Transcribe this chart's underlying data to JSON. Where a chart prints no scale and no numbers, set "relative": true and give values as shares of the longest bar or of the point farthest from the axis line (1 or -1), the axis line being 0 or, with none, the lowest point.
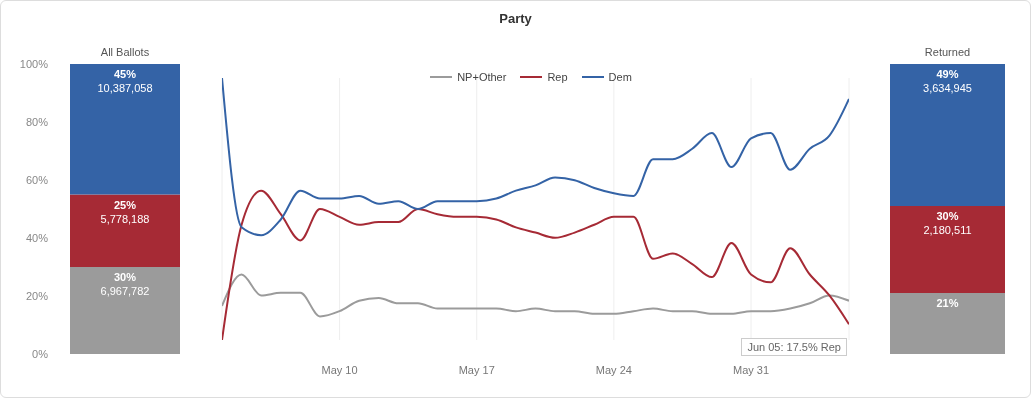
{
  "chart_data": [
    {
      "type": "bar",
      "stacked": true,
      "categories": [
        "All Ballots"
      ],
      "ylim": [
        0,
        100
      ],
      "yticks": [
        {
          "value": 0,
          "label": "0%"
        },
        {
          "value": 20,
          "label": "20%"
        },
        {
          "value": 40,
          "label": "40%"
        },
        {
          "value": 60,
          "label": "60%"
        },
        {
          "value": 80,
          "label": "80%"
        },
        {
          "value": 100,
          "label": "100%"
        }
      ],
      "grid": false,
      "series": [
        {
          "color": "#9b9b9b",
          "values": [
            30
          ],
          "value_labels": [
            "30%\n6,967,782"
          ]
        },
        {
          "color": "#a62a35",
          "values": [
            25
          ],
          "value_labels": [
            "25%\n5,778,188"
          ]
        },
        {
          "color": "#3463a6",
          "values": [
            45
          ],
          "value_labels": [
            "45%\n10,387,058"
          ]
        }
      ]
    },
    {
      "type": "line",
      "title": "Party",
      "relative": true,
      "legend": "top",
      "grid": "x",
      "marker": "none",
      "line_style": "solid",
      "x": [
        "--05-04",
        "--05-05",
        "--05-06",
        "--05-07",
        "--05-08",
        "--05-09",
        "--05-10",
        "--05-11",
        "--05-12",
        "--05-13",
        "--05-14",
        "--05-15",
        "--05-16",
        "--05-17",
        "--05-18",
        "--05-19",
        "--05-20",
        "--05-21",
        "--05-22",
        "--05-23",
        "--05-24",
        "--05-25",
        "--05-26",
        "--05-27",
        "--05-28",
        "--05-29",
        "--05-30",
        "--05-31",
        "--06-01",
        "--06-02",
        "--06-03",
        "--06-04",
        "--06-05"
      ],
      "xlim": [
        "--05-04",
        "--06-05"
      ],
      "xticks": [
        {
          "value": "--05-10",
          "label": "May 10"
        },
        {
          "value": "--05-17",
          "label": "May 17"
        },
        {
          "value": "--05-24",
          "label": "May 24"
        },
        {
          "value": "--05-31",
          "label": "May 31"
        }
      ],
      "annotations": [
        "Jun 05: 17.5% Rep"
      ],
      "series": [
        {
          "name": "NP+Other",
          "color": "#9b9b9b",
          "values": [
            0.13,
            0.25,
            0.17,
            0.18,
            0.18,
            0.09,
            0.11,
            0.15,
            0.16,
            0.14,
            0.14,
            0.12,
            0.12,
            0.12,
            0.12,
            0.11,
            0.12,
            0.11,
            0.11,
            0.1,
            0.1,
            0.11,
            0.12,
            0.11,
            0.11,
            0.1,
            0.1,
            0.11,
            0.11,
            0.12,
            0.14,
            0.17,
            0.15
          ]
        },
        {
          "name": "Rep",
          "color": "#a62a35",
          "values": [
            0,
            0.44,
            0.57,
            0.48,
            0.38,
            0.5,
            0.47,
            0.44,
            0.45,
            0.45,
            0.5,
            0.48,
            0.47,
            0.47,
            0.46,
            0.43,
            0.41,
            0.39,
            0.41,
            0.44,
            0.47,
            0.47,
            0.31,
            0.33,
            0.29,
            0.24,
            0.37,
            0.25,
            0.22,
            0.35,
            0.25,
            0.17,
            0.06
          ]
        },
        {
          "name": "Dem",
          "color": "#3463a6",
          "values": [
            1,
            0.43,
            0.4,
            0.46,
            0.57,
            0.54,
            0.54,
            0.55,
            0.52,
            0.53,
            0.5,
            0.53,
            0.53,
            0.53,
            0.54,
            0.57,
            0.59,
            0.62,
            0.61,
            0.58,
            0.56,
            0.55,
            0.69,
            0.69,
            0.73,
            0.79,
            0.66,
            0.77,
            0.79,
            0.65,
            0.73,
            0.78,
            0.92
          ]
        }
      ]
    },
    {
      "type": "bar",
      "stacked": true,
      "categories": [
        "Returned"
      ],
      "ylim": [
        0,
        100
      ],
      "tick_labels": "x",
      "grid": false,
      "series": [
        {
          "color": "#9b9b9b",
          "values": [
            21
          ],
          "value_labels": [
            "21%"
          ]
        },
        {
          "color": "#a62a35",
          "values": [
            30
          ],
          "value_labels": [
            "30%\n2,180,511"
          ]
        },
        {
          "color": "#3463a6",
          "values": [
            49
          ],
          "value_labels": [
            "49%\n3,634,945"
          ]
        }
      ]
    }
  ]
}
